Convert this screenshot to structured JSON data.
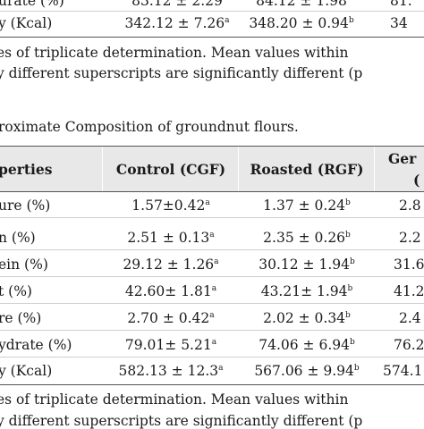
{
  "top_table": {
    "rows": [
      {
        "label": "urate (%)",
        "c1": "83.12 ± 2.29",
        "c1_sup": "",
        "c2": "84.12 ± 1.98",
        "c2_sup": "",
        "c3": "81.",
        "c3_sup": ""
      },
      {
        "label": "y (Kcal)",
        "c1": "342.12 ± 7.26",
        "c1_sup": "a",
        "c2": "348.20 ± 0.94",
        "c2_sup": "b",
        "c3": "34",
        "c3_sup": ""
      }
    ]
  },
  "top_note": {
    "line1": "es of triplicate determination. Mean values within",
    "line2": "y different superscripts are significantly different (p"
  },
  "table_caption": "roximate Composition of groundnut flours.",
  "main_table": {
    "headers": {
      "col0": "perties",
      "col1": "Control (CGF)",
      "col2": "Roasted (RGF)",
      "col3_line1": "Ger",
      "col3_line2": "("
    },
    "rows": [
      {
        "label": "ure (%)",
        "c1": "1.57±0.42",
        "c1_sup": "a",
        "c2": "1.37 ± 0.24",
        "c2_sup": "b",
        "c3": "2.8"
      },
      {
        "label": "n (%)",
        "c1": "2.51 ± 0.13",
        "c1_sup": "a",
        "c2": "2.35 ± 0.26",
        "c2_sup": "b",
        "c3": "2.2"
      },
      {
        "label": "ein (%)",
        "c1": "29.12 ± 1.26",
        "c1_sup": "a",
        "c2": "30.12 ± 1.94",
        "c2_sup": "b",
        "c3": "31.6"
      },
      {
        "label": "t (%)",
        "c1": "42.60± 1.81",
        "c1_sup": "a",
        "c2": "43.21± 1.94",
        "c2_sup": "b",
        "c3": "41.2"
      },
      {
        "label": "re (%)",
        "c1": "2.70 ± 0.42",
        "c1_sup": "a",
        "c2": "2.02 ± 0.34",
        "c2_sup": "b",
        "c3": "2.4"
      },
      {
        "label": "ydrate (%)",
        "c1": "79.01± 5.21",
        "c1_sup": "a",
        "c2": "74.06 ± 6.94",
        "c2_sup": "b",
        "c3": "76.2"
      },
      {
        "label": "y (Kcal)",
        "c1": "582.13 ± 12.3",
        "c1_sup": "a",
        "c2": "567.06 ± 9.94",
        "c2_sup": "b",
        "c3": "574.1"
      }
    ]
  },
  "bottom_note": {
    "line1": "es of triplicate determination. Mean values within",
    "line2": "y different superscripts are significantly different (p"
  }
}
